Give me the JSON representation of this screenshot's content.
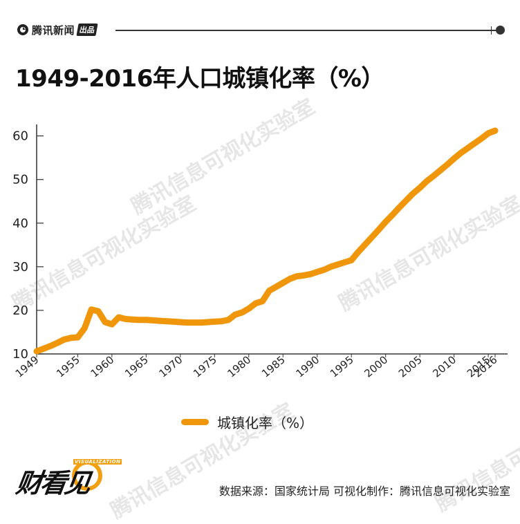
{
  "brand": {
    "name": "腾讯新闻",
    "tag": "出品"
  },
  "title": "1949-2016年人口城镇化率（%）",
  "watermark": "腾讯信息可视化实验室",
  "footer": {
    "logo_text": "财看见",
    "logo_sub": "VISUALIZATION",
    "source": "数据来源：国家统计局 可视化制作：腾讯信息可视化实验室"
  },
  "colors": {
    "line": "#F0960A",
    "axis": "#333333"
  },
  "chart_data": {
    "type": "line",
    "title": "",
    "xlabel": "",
    "ylabel": "",
    "xlim": [
      1949,
      2016
    ],
    "ylim": [
      10,
      62
    ],
    "yticks": [
      10,
      20,
      30,
      40,
      50,
      60
    ],
    "xticks": [
      1949,
      1955,
      1960,
      1965,
      1970,
      1975,
      1980,
      1985,
      1990,
      1995,
      2000,
      2005,
      2010,
      2015,
      2016
    ],
    "legend": "bottom-center",
    "grid": false,
    "series": [
      {
        "name": "城镇化率（%）",
        "x": [
          1949,
          1950,
          1951,
          1952,
          1953,
          1954,
          1955,
          1956,
          1957,
          1958,
          1959,
          1960,
          1961,
          1962,
          1963,
          1964,
          1965,
          1966,
          1967,
          1968,
          1969,
          1970,
          1971,
          1972,
          1973,
          1974,
          1975,
          1976,
          1977,
          1978,
          1979,
          1980,
          1981,
          1982,
          1983,
          1984,
          1985,
          1986,
          1987,
          1988,
          1989,
          1990,
          1991,
          1992,
          1993,
          1994,
          1995,
          1996,
          1997,
          1998,
          1999,
          2000,
          2001,
          2002,
          2003,
          2004,
          2005,
          2006,
          2007,
          2008,
          2009,
          2010,
          2011,
          2012,
          2013,
          2014,
          2015,
          2016
        ],
        "values": [
          10.6,
          11.2,
          11.8,
          12.5,
          13.3,
          13.7,
          13.8,
          15.9,
          20.2,
          19.8,
          17.3,
          16.8,
          18.4,
          18.0,
          17.9,
          17.8,
          17.8,
          17.7,
          17.6,
          17.5,
          17.4,
          17.3,
          17.2,
          17.2,
          17.2,
          17.3,
          17.4,
          17.5,
          17.8,
          19.0,
          19.5,
          20.4,
          21.6,
          22.1,
          24.5,
          25.4,
          26.3,
          27.2,
          27.8,
          28.0,
          28.3,
          28.8,
          29.3,
          30.0,
          30.5,
          31.0,
          31.5,
          33.4,
          35.1,
          36.8,
          38.5,
          40.3,
          41.9,
          43.6,
          45.2,
          46.8,
          48.1,
          49.6,
          50.8,
          52.1,
          53.4,
          54.8,
          56.1,
          57.2,
          58.3,
          59.4,
          60.6,
          61.2
        ]
      }
    ]
  }
}
